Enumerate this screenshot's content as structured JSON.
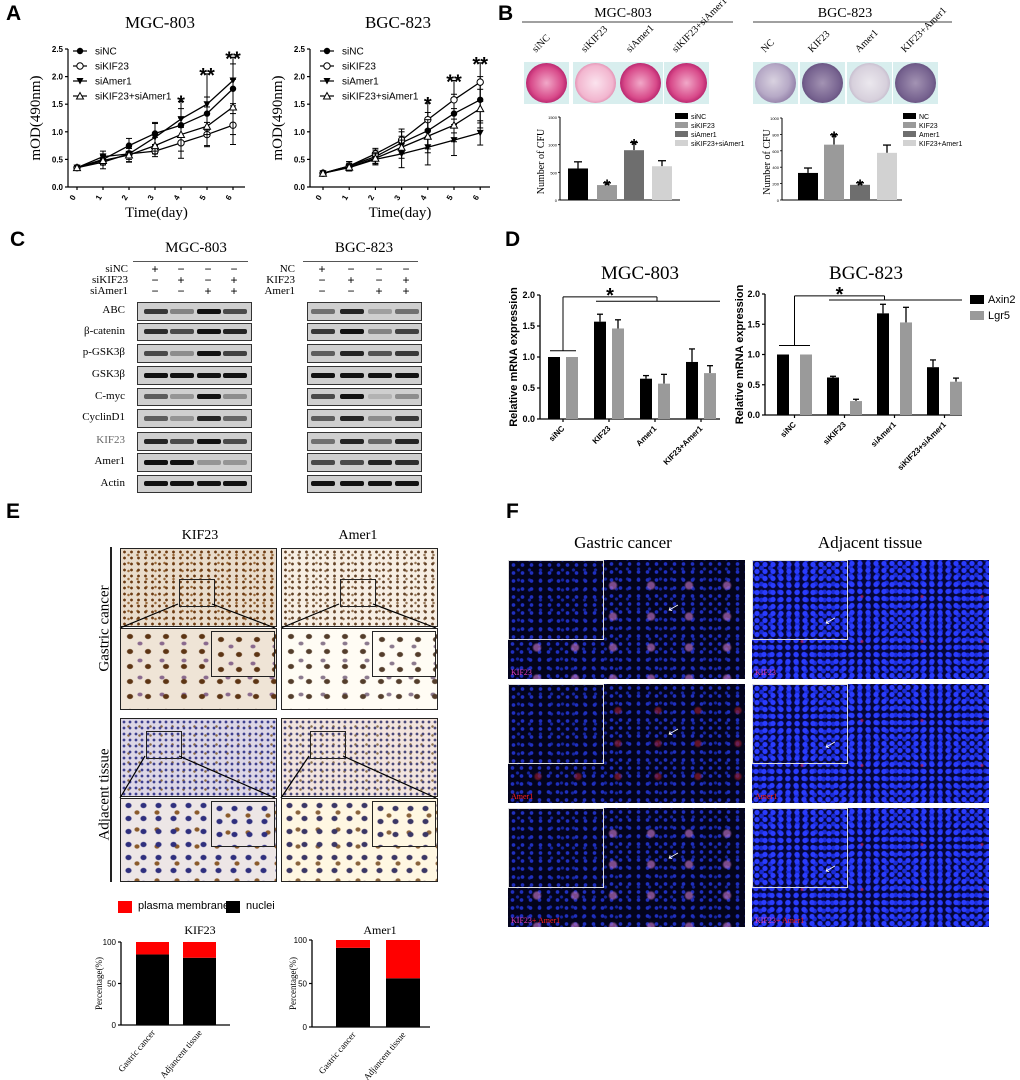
{
  "panels": {
    "A": "A",
    "B": "B",
    "C": "C",
    "D": "D",
    "E": "E",
    "F": "F"
  },
  "chart_data": [
    {
      "id": "A-MGC",
      "type": "line",
      "title": "MGC-803",
      "xlabel": "Time(day)",
      "ylabel": "mOD(490nm)",
      "x": [
        0,
        1,
        2,
        3,
        4,
        5,
        6
      ],
      "xticks": [
        "0",
        "1",
        "2",
        "3",
        "4",
        "5",
        "6"
      ],
      "ylim": [
        0,
        2.5
      ],
      "yticks": [
        "0.0",
        "0.5",
        "1.0",
        "1.5",
        "2.0",
        "2.5"
      ],
      "legend": "top-left",
      "series": [
        {
          "name": "siNC",
          "marker": "filled-circle",
          "values": [
            0.35,
            0.5,
            0.75,
            0.97,
            1.12,
            1.33,
            1.78
          ],
          "errors": [
            0.03,
            0.1,
            0.13,
            0.2,
            0.3,
            0.3,
            0.45
          ]
        },
        {
          "name": "siKIF23",
          "marker": "open-circle",
          "values": [
            0.35,
            0.45,
            0.6,
            0.65,
            0.8,
            0.95,
            1.12
          ],
          "errors": [
            0.03,
            0.12,
            0.1,
            0.1,
            0.28,
            0.22,
            0.35
          ]
        },
        {
          "name": "siAmer1",
          "marker": "filled-down-triangle",
          "values": [
            0.35,
            0.55,
            0.6,
            0.9,
            1.23,
            1.5,
            1.93
          ],
          "errors": [
            0.03,
            0.1,
            0.15,
            0.25,
            0.32,
            0.55,
            0.42
          ]
        },
        {
          "name": "siKIF23+siAmer1",
          "marker": "open-up-triangle",
          "values": [
            0.35,
            0.48,
            0.58,
            0.75,
            0.95,
            1.1,
            1.45
          ],
          "errors": [
            0.03,
            0.08,
            0.12,
            0.15,
            0.3,
            0.35,
            0.5
          ]
        }
      ],
      "annotations": [
        {
          "x": 4,
          "text": "*"
        },
        {
          "x": 5,
          "text": "**"
        },
        {
          "x": 6,
          "text": "**"
        }
      ]
    },
    {
      "id": "A-BGC",
      "type": "line",
      "title": "BGC-823",
      "xlabel": "Time(day)",
      "ylabel": "mOD(490nm)",
      "x": [
        0,
        1,
        2,
        3,
        4,
        5,
        6
      ],
      "xticks": [
        "0",
        "1",
        "2",
        "3",
        "4",
        "5",
        "6"
      ],
      "ylim": [
        0,
        2.5
      ],
      "yticks": [
        "0.0",
        "0.5",
        "1.0",
        "1.5",
        "2.0",
        "2.5"
      ],
      "legend": "top-left",
      "series": [
        {
          "name": "siNC",
          "marker": "filled-circle",
          "values": [
            0.25,
            0.38,
            0.55,
            0.8,
            1.02,
            1.33,
            1.58
          ],
          "errors": [
            0.04,
            0.08,
            0.12,
            0.2,
            0.33,
            0.35,
            0.42
          ]
        },
        {
          "name": "siKIF23",
          "marker": "open-circle",
          "values": [
            0.25,
            0.38,
            0.6,
            0.85,
            1.22,
            1.58,
            1.9
          ],
          "errors": [
            0.04,
            0.08,
            0.1,
            0.2,
            0.3,
            0.35,
            0.35
          ]
        },
        {
          "name": "siAmer1",
          "marker": "filled-down-triangle",
          "values": [
            0.25,
            0.35,
            0.5,
            0.6,
            0.72,
            0.85,
            0.98
          ],
          "errors": [
            0.04,
            0.06,
            0.1,
            0.25,
            0.32,
            0.28,
            0.22
          ]
        },
        {
          "name": "siKIF23+siAmer1",
          "marker": "open-up-triangle",
          "values": [
            0.25,
            0.36,
            0.52,
            0.72,
            0.92,
            1.12,
            1.42
          ],
          "errors": [
            0.04,
            0.07,
            0.1,
            0.2,
            0.3,
            0.3,
            0.35
          ]
        }
      ],
      "annotations": [
        {
          "x": 4,
          "text": "*"
        },
        {
          "x": 5,
          "text": "**"
        },
        {
          "x": 6,
          "text": "**"
        }
      ]
    },
    {
      "id": "B-MGC",
      "type": "bar",
      "title": "MGC-803",
      "ylabel": "Number of CFU",
      "categories": [
        "siNC",
        "siKIF23",
        "siAmer1",
        "siKIF23+siAmer1"
      ],
      "values": [
        570,
        270,
        900,
        610
      ],
      "errors": [
        120,
        40,
        140,
        100
      ],
      "colors": [
        "#000000",
        "#9a9a9a",
        "#6e6e6e",
        "#d2d2d2"
      ],
      "significance": [
        "",
        "*",
        "*",
        ""
      ],
      "ylim": [
        0,
        1500
      ],
      "yticks": [
        "0",
        "500",
        "1000",
        "1500"
      ],
      "legend": "top-right"
    },
    {
      "id": "B-BGC",
      "type": "bar",
      "title": "BGC-823",
      "ylabel": "Number of CFU",
      "categories": [
        "NC",
        "KIF23",
        "Amer1",
        "KIF23+Amer1"
      ],
      "values": [
        330,
        675,
        185,
        575
      ],
      "errors": [
        60,
        120,
        25,
        95
      ],
      "colors": [
        "#000000",
        "#9a9a9a",
        "#6e6e6e",
        "#d2d2d2"
      ],
      "significance": [
        "",
        "*",
        "*",
        ""
      ],
      "ylim": [
        0,
        1000
      ],
      "yticks": [
        "0",
        "200",
        "400",
        "600",
        "800",
        "1000"
      ],
      "legend": "top-right"
    },
    {
      "id": "D-MGC",
      "type": "bar",
      "title": "MGC-803",
      "ylabel": "Relative mRNA expression",
      "categories": [
        "siNC",
        "KIF23",
        "Amer1",
        "KIF23+Amer1"
      ],
      "series": [
        {
          "name": "Axin2",
          "color": "#000000",
          "values": [
            1.0,
            1.57,
            0.65,
            0.92
          ],
          "errors": [
            0,
            0.12,
            0.05,
            0.21
          ]
        },
        {
          "name": "Lgr5",
          "color": "#9a9a9a",
          "values": [
            1.0,
            1.46,
            0.57,
            0.74
          ],
          "errors": [
            0,
            0.14,
            0.15,
            0.12
          ]
        }
      ],
      "ylim": [
        0,
        2.0
      ],
      "yticks": [
        "0.0",
        "0.5",
        "1.0",
        "1.5",
        "2.0"
      ],
      "significance": "*"
    },
    {
      "id": "D-BGC",
      "type": "bar",
      "title": "BGC-823",
      "ylabel": "Relative mRNA expression",
      "categories": [
        "siNC",
        "siKIF23",
        "siAmer1",
        "siKIF23+siAmer1"
      ],
      "series": [
        {
          "name": "Axin2",
          "color": "#000000",
          "values": [
            1.0,
            0.62,
            1.68,
            0.79
          ],
          "errors": [
            0,
            0.02,
            0.15,
            0.12
          ]
        },
        {
          "name": "Lgr5",
          "color": "#9a9a9a",
          "values": [
            1.0,
            0.23,
            1.53,
            0.55
          ],
          "errors": [
            0,
            0.03,
            0.25,
            0.06
          ]
        }
      ],
      "ylim": [
        0,
        2.0
      ],
      "yticks": [
        "0.0",
        "0.5",
        "1.0",
        "1.5",
        "2.0"
      ],
      "significance": "*",
      "legend": "top-right"
    },
    {
      "id": "E-KIF23",
      "type": "bar",
      "stacked": true,
      "title": "KIF23",
      "ylabel": "Percentage(%)",
      "categories": [
        "Gastric cancer",
        "Adjancent tissue"
      ],
      "series": [
        {
          "name": "nuclei",
          "color": "#000000",
          "values": [
            85,
            81
          ]
        },
        {
          "name": "plasma membranep",
          "color": "#ff0000",
          "values": [
            15,
            19
          ]
        }
      ],
      "ylim": [
        0,
        100
      ],
      "yticks": [
        "0",
        "50",
        "100"
      ]
    },
    {
      "id": "E-Amer1",
      "type": "bar",
      "stacked": true,
      "title": "Amer1",
      "ylabel": "Percentage(%)",
      "categories": [
        "Gastric cancer",
        "Adjancent tissue"
      ],
      "series": [
        {
          "name": "nuclei",
          "color": "#000000",
          "values": [
            91,
            56
          ]
        },
        {
          "name": "plasma membranep",
          "color": "#ff0000",
          "values": [
            9,
            44
          ]
        }
      ],
      "ylim": [
        0,
        100
      ],
      "yticks": [
        "0",
        "50",
        "100"
      ]
    }
  ],
  "B": {
    "plates_mgc": [
      "siNC",
      "siKIF23",
      "siAmer1",
      "siKIF23+siAmer1"
    ],
    "plates_bgc": [
      "NC",
      "KIF23",
      "Amer1",
      "KIF23+Amer1"
    ]
  },
  "C": {
    "mgc": {
      "title": "MGC-803",
      "conditions": [
        {
          "label": "siNC",
          "signs": [
            "+",
            "−",
            "−",
            "−"
          ]
        },
        {
          "label": "siKIF23",
          "signs": [
            "−",
            "+",
            "−",
            "+"
          ]
        },
        {
          "label": "siAmer1",
          "signs": [
            "−",
            "−",
            "+",
            "+"
          ]
        }
      ]
    },
    "bgc": {
      "title": "BGC-823",
      "conditions": [
        {
          "label": "NC",
          "signs": [
            "+",
            "−",
            "−",
            "−"
          ]
        },
        {
          "label": "KIF23",
          "signs": [
            "−",
            "+",
            "−",
            "+"
          ]
        },
        {
          "label": "Amer1",
          "signs": [
            "−",
            "−",
            "+",
            "+"
          ]
        }
      ]
    },
    "proteins": [
      "ABC",
      "β-catenin",
      "p-GSK3β",
      "GSK3β",
      "C-myc",
      "CyclinD1",
      "KIF23",
      "Amer1",
      "Actin"
    ]
  },
  "E": {
    "columns": [
      "KIF23",
      "Amer1"
    ],
    "rows": [
      "Gastric cancer",
      "Adjacent tissue"
    ],
    "legend": [
      "plasma membranep",
      "nuclei"
    ]
  },
  "F": {
    "columns": [
      "Gastric cancer",
      "Adjacent tissue"
    ],
    "row_labels": [
      {
        "a": "KIF23",
        "b": ""
      },
      {
        "a": "",
        "b": "Amer1"
      },
      {
        "a": "KIF23",
        "b": "+ Amer1"
      }
    ],
    "colors": {
      "kif23": "#e040c0",
      "amer1": "#ff2020"
    }
  }
}
